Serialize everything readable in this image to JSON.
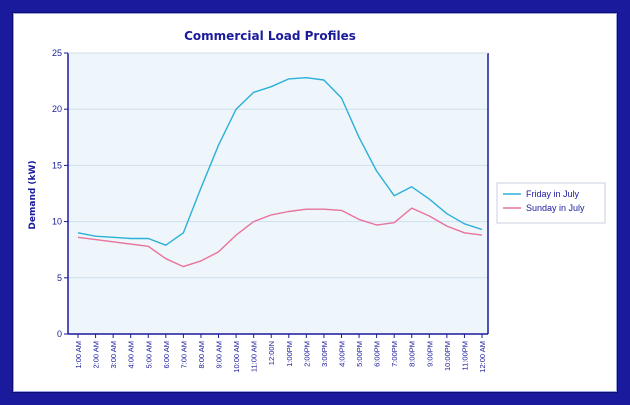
{
  "chart_data": {
    "type": "line",
    "title": "Commercial Load Profiles",
    "ylabel": "Demand (kW)",
    "xlabel": "",
    "ylim": [
      0,
      25
    ],
    "yticks": [
      0,
      5,
      10,
      15,
      20,
      25
    ],
    "grid": true,
    "legend_position": "right",
    "categories": [
      "1:00 AM",
      "2:00 AM",
      "3:00 AM",
      "4:00 AM",
      "5:00 AM",
      "6:00 AM",
      "7:00 AM",
      "8:00 AM",
      "9:00 AM",
      "10:00 AM",
      "11:00 AM",
      "12:00N",
      "1:00PM",
      "2:00PM",
      "3:00PM",
      "4:00PM",
      "5:00PM",
      "6:00PM",
      "7:00PM",
      "8:00PM",
      "9:00PM",
      "10:00PM",
      "11:00PM",
      "12:00 AM"
    ],
    "series": [
      {
        "name": "Friday in July",
        "color": "#2bb0d8",
        "values": [
          9.0,
          8.7,
          8.6,
          8.5,
          8.5,
          7.9,
          9.0,
          13.0,
          16.8,
          20.0,
          21.5,
          22.0,
          22.7,
          22.8,
          22.6,
          21.0,
          17.5,
          14.5,
          12.3,
          13.1,
          12.0,
          10.7,
          9.8,
          9.3
        ]
      },
      {
        "name": "Sunday in July",
        "color": "#e8739c",
        "values": [
          8.6,
          8.4,
          8.2,
          8.0,
          7.8,
          6.7,
          6.0,
          6.5,
          7.3,
          8.8,
          10.0,
          10.6,
          10.9,
          11.1,
          11.1,
          11.0,
          10.2,
          9.7,
          9.9,
          11.2,
          10.5,
          9.6,
          9.0,
          8.8
        ]
      }
    ]
  }
}
